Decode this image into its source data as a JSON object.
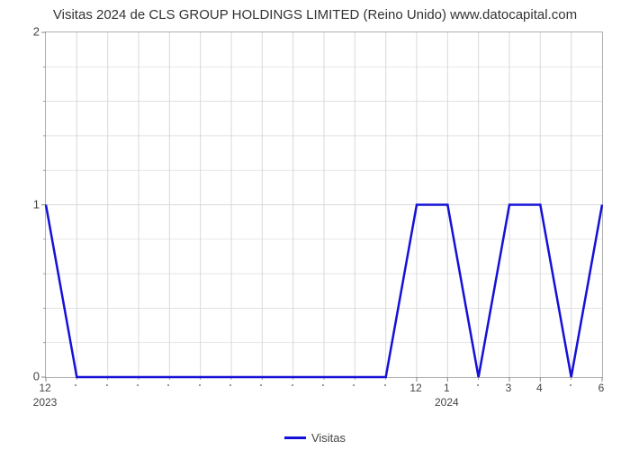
{
  "chart": {
    "type": "line",
    "title": "Visitas 2024 de CLS GROUP HOLDINGS LIMITED (Reino Unido) www.datocapital.com",
    "title_fontsize": 15,
    "title_color": "#333333",
    "background_color": "#ffffff",
    "plot_border_color": "#b0b0b0",
    "grid_color": "#d9d9d9",
    "line_color": "#1510d8",
    "line_width": 2.5,
    "x_points": [
      0,
      1,
      2,
      3,
      4,
      5,
      6,
      7,
      8,
      9,
      10,
      11,
      12,
      13,
      14,
      15,
      16,
      17,
      18
    ],
    "y_values": [
      1,
      0,
      0,
      0,
      0,
      0,
      0,
      0,
      0,
      0,
      0,
      0,
      1,
      1,
      0,
      1,
      1,
      0,
      1
    ],
    "ylim": [
      0,
      2
    ],
    "ytick_values": [
      0,
      1,
      2
    ],
    "ytick_labels": [
      "0",
      "1",
      "2"
    ],
    "ytick_minor_count": 4,
    "xtick_major": [
      {
        "pos": 0,
        "label": "12",
        "sublabel": "2023"
      },
      {
        "pos": 12,
        "label": "12"
      },
      {
        "pos": 13,
        "label": "1",
        "sublabel": "2024"
      },
      {
        "pos": 15,
        "label": "3"
      },
      {
        "pos": 16,
        "label": "4"
      },
      {
        "pos": 18,
        "label": "6"
      }
    ],
    "xtick_minor_positions": [
      1,
      2,
      3,
      4,
      5,
      6,
      7,
      8,
      9,
      10,
      11,
      14,
      17
    ],
    "legend_label": "Visitas",
    "label_fontsize": 13,
    "label_color": "#444444",
    "tick_color": "#888888"
  }
}
